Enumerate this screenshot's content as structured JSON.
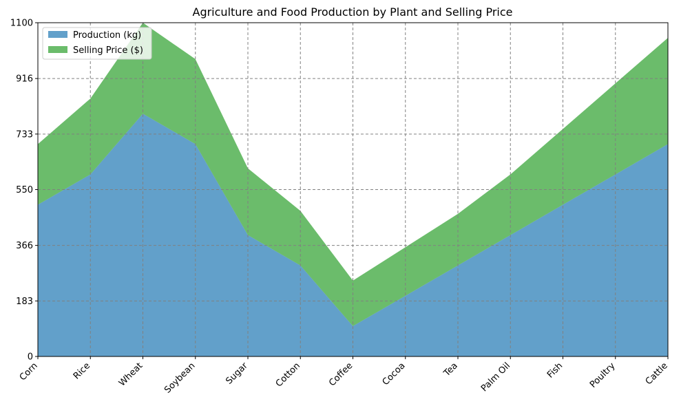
{
  "chart_data": {
    "type": "area",
    "stacked": true,
    "title": "Agriculture and Food Production by Plant and Selling Price",
    "xlabel": "",
    "ylabel": "",
    "categories": [
      "Corn",
      "Rice",
      "Wheat",
      "Soybean",
      "Sugar",
      "Cotton",
      "Coffee",
      "Cocoa",
      "Tea",
      "Palm Oil",
      "Fish",
      "Poultry",
      "Cattle"
    ],
    "series": [
      {
        "name": "Production (kg)",
        "color": "#1f77b4",
        "values": [
          500,
          600,
          800,
          700,
          400,
          300,
          100,
          200,
          300,
          400,
          500,
          600,
          700
        ]
      },
      {
        "name": "Selling Price ($)",
        "color": "#2ca02c",
        "values": [
          200,
          250,
          300,
          280,
          220,
          180,
          150,
          160,
          170,
          200,
          250,
          300,
          350
        ]
      }
    ],
    "ylim": [
      0,
      1100
    ],
    "yticks": [
      "0",
      "183",
      "366",
      "550",
      "733",
      "916",
      "1100"
    ],
    "grid": true,
    "legend_position": "top-left"
  }
}
